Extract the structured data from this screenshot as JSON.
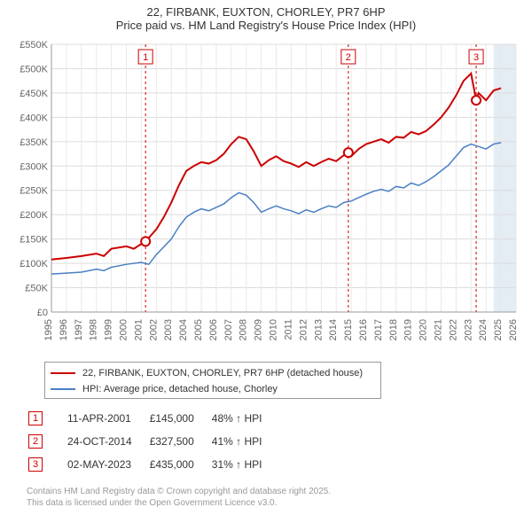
{
  "title_line1": "22, FIRBANK, EUXTON, CHORLEY, PR7 6HP",
  "title_line2": "Price paid vs. HM Land Registry's House Price Index (HPI)",
  "chart": {
    "type": "line",
    "background_color": "#ffffff",
    "grid_color": "#dcdcdc",
    "grid_v_color": "#e8e8e8",
    "axis_color": "#999999",
    "band_color": "#d8e4f0",
    "x_min": 1995,
    "x_max": 2026,
    "y_min": 0,
    "y_max": 550000,
    "y_tick_step": 50000,
    "x_ticks": [
      1995,
      1996,
      1997,
      1998,
      1999,
      2000,
      2001,
      2002,
      2003,
      2004,
      2005,
      2006,
      2007,
      2008,
      2009,
      2010,
      2011,
      2012,
      2013,
      2014,
      2015,
      2016,
      2017,
      2018,
      2019,
      2020,
      2021,
      2022,
      2023,
      2024,
      2025,
      2026
    ],
    "y_tick_labels": [
      "£0",
      "£50K",
      "£100K",
      "£150K",
      "£200K",
      "£250K",
      "£300K",
      "£350K",
      "£400K",
      "£450K",
      "£500K",
      "£550K"
    ],
    "band_x_start": 2024.5,
    "band_x_end": 2026,
    "series": [
      {
        "name": "22, FIRBANK, EUXTON, CHORLEY, PR7 6HP (detached house)",
        "color": "#cc0000",
        "line_width": 2,
        "data": [
          [
            1995,
            108000
          ],
          [
            1996,
            111000
          ],
          [
            1997,
            115000
          ],
          [
            1998,
            120000
          ],
          [
            1998.5,
            115000
          ],
          [
            1999,
            130000
          ],
          [
            2000,
            135000
          ],
          [
            2000.5,
            130000
          ],
          [
            2001,
            140000
          ],
          [
            2001.28,
            145000
          ],
          [
            2002,
            170000
          ],
          [
            2002.5,
            195000
          ],
          [
            2003,
            225000
          ],
          [
            2003.5,
            260000
          ],
          [
            2004,
            290000
          ],
          [
            2004.5,
            300000
          ],
          [
            2005,
            308000
          ],
          [
            2005.5,
            305000
          ],
          [
            2006,
            312000
          ],
          [
            2006.5,
            325000
          ],
          [
            2007,
            345000
          ],
          [
            2007.5,
            360000
          ],
          [
            2008,
            355000
          ],
          [
            2008.5,
            330000
          ],
          [
            2009,
            300000
          ],
          [
            2009.5,
            312000
          ],
          [
            2010,
            320000
          ],
          [
            2010.5,
            310000
          ],
          [
            2011,
            305000
          ],
          [
            2011.5,
            298000
          ],
          [
            2012,
            308000
          ],
          [
            2012.5,
            300000
          ],
          [
            2013,
            308000
          ],
          [
            2013.5,
            315000
          ],
          [
            2014,
            310000
          ],
          [
            2014.5,
            322000
          ],
          [
            2014.81,
            327500
          ],
          [
            2015,
            320000
          ],
          [
            2015.5,
            335000
          ],
          [
            2016,
            345000
          ],
          [
            2016.5,
            350000
          ],
          [
            2017,
            355000
          ],
          [
            2017.5,
            348000
          ],
          [
            2018,
            360000
          ],
          [
            2018.5,
            358000
          ],
          [
            2019,
            370000
          ],
          [
            2019.5,
            365000
          ],
          [
            2020,
            372000
          ],
          [
            2020.5,
            385000
          ],
          [
            2021,
            400000
          ],
          [
            2021.5,
            420000
          ],
          [
            2022,
            445000
          ],
          [
            2022.5,
            475000
          ],
          [
            2023,
            490000
          ],
          [
            2023.34,
            435000
          ],
          [
            2023.5,
            450000
          ],
          [
            2024,
            435000
          ],
          [
            2024.5,
            455000
          ],
          [
            2025,
            460000
          ]
        ]
      },
      {
        "name": "HPI: Average price, detached house, Chorley",
        "color": "#4a7fc4",
        "line_width": 1.5,
        "data": [
          [
            1995,
            78000
          ],
          [
            1996,
            80000
          ],
          [
            1997,
            82000
          ],
          [
            1998,
            88000
          ],
          [
            1998.5,
            85000
          ],
          [
            1999,
            92000
          ],
          [
            2000,
            98000
          ],
          [
            2001,
            102000
          ],
          [
            2001.5,
            98000
          ],
          [
            2002,
            118000
          ],
          [
            2003,
            150000
          ],
          [
            2003.5,
            175000
          ],
          [
            2004,
            195000
          ],
          [
            2004.5,
            205000
          ],
          [
            2005,
            212000
          ],
          [
            2005.5,
            208000
          ],
          [
            2006,
            215000
          ],
          [
            2006.5,
            222000
          ],
          [
            2007,
            235000
          ],
          [
            2007.5,
            245000
          ],
          [
            2008,
            240000
          ],
          [
            2008.5,
            225000
          ],
          [
            2009,
            205000
          ],
          [
            2009.5,
            212000
          ],
          [
            2010,
            218000
          ],
          [
            2010.5,
            212000
          ],
          [
            2011,
            208000
          ],
          [
            2011.5,
            202000
          ],
          [
            2012,
            210000
          ],
          [
            2012.5,
            205000
          ],
          [
            2013,
            212000
          ],
          [
            2013.5,
            218000
          ],
          [
            2014,
            215000
          ],
          [
            2014.5,
            225000
          ],
          [
            2015,
            228000
          ],
          [
            2015.5,
            235000
          ],
          [
            2016,
            242000
          ],
          [
            2016.5,
            248000
          ],
          [
            2017,
            252000
          ],
          [
            2017.5,
            248000
          ],
          [
            2018,
            258000
          ],
          [
            2018.5,
            255000
          ],
          [
            2019,
            265000
          ],
          [
            2019.5,
            260000
          ],
          [
            2020,
            268000
          ],
          [
            2020.5,
            278000
          ],
          [
            2021,
            290000
          ],
          [
            2021.5,
            302000
          ],
          [
            2022,
            320000
          ],
          [
            2022.5,
            338000
          ],
          [
            2023,
            345000
          ],
          [
            2023.5,
            340000
          ],
          [
            2024,
            335000
          ],
          [
            2024.5,
            345000
          ],
          [
            2025,
            348000
          ]
        ]
      }
    ],
    "sales": [
      {
        "label": "1",
        "date": "11-APR-2001",
        "x": 2001.28,
        "price": 145000,
        "price_str": "£145,000",
        "pct": "48%",
        "pct_label": "↑ HPI"
      },
      {
        "label": "2",
        "date": "24-OCT-2014",
        "x": 2014.81,
        "price": 327500,
        "price_str": "£327,500",
        "pct": "41%",
        "pct_label": "↑ HPI"
      },
      {
        "label": "3",
        "date": "02-MAY-2023",
        "x": 2023.34,
        "price": 435000,
        "price_str": "£435,000",
        "pct": "31%",
        "pct_label": "↑ HPI"
      }
    ],
    "sale_line_color": "#cc0000",
    "sale_marker_border": "#cc0000",
    "sale_marker_fill": "#ffffff",
    "label_fontsize": 11,
    "label_color": "#666666"
  },
  "legend_sep": "",
  "footer_line1": "Contains HM Land Registry data © Crown copyright and database right 2025.",
  "footer_line2": "This data is licensed under the Open Government Licence v3.0."
}
